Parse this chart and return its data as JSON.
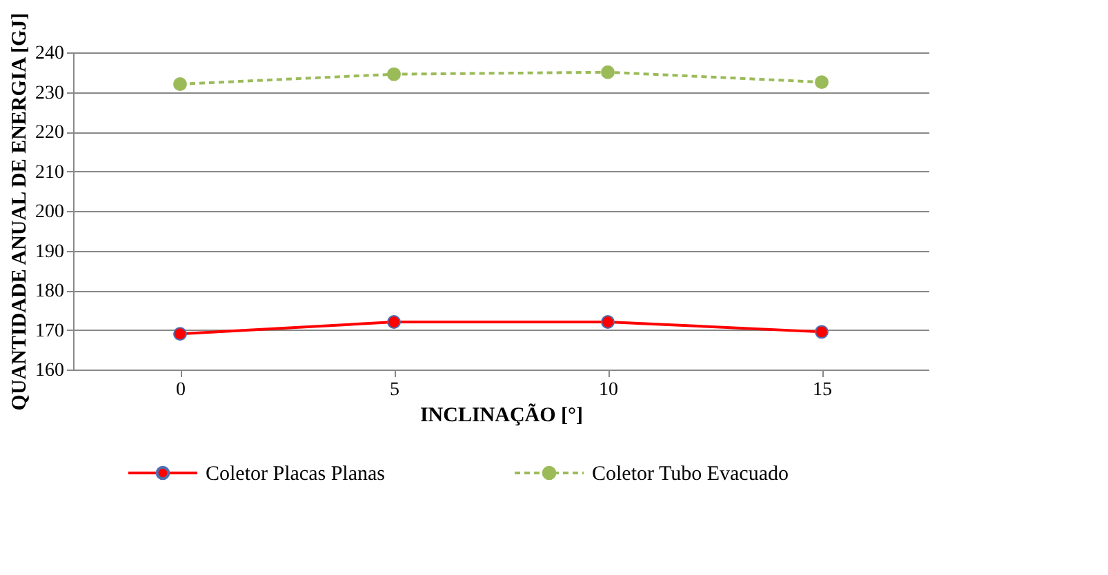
{
  "chart_data": {
    "type": "line",
    "xlabel": "INCLINAÇÃO [°]",
    "ylabel": "QUANTIDADE ANUAL DE ENERGIA  [GJ]",
    "categories": [
      "0",
      "5",
      "10",
      "15"
    ],
    "series": [
      {
        "name": "Coletor Placas Planas",
        "color": "#ff0000",
        "values": [
          169,
          172,
          172,
          169.5
        ],
        "line_style": "solid",
        "marker": "circle"
      },
      {
        "name": "Coletor Tubo Evacuado",
        "color": "#9bbb59",
        "values": [
          232,
          234.5,
          235,
          232.5
        ],
        "line_style": "dashed",
        "marker": "circle"
      }
    ],
    "ylim": [
      160,
      240
    ],
    "yticks": [
      160,
      170,
      180,
      190,
      200,
      210,
      220,
      230,
      240
    ],
    "grid": "y",
    "legend": "bottom"
  }
}
